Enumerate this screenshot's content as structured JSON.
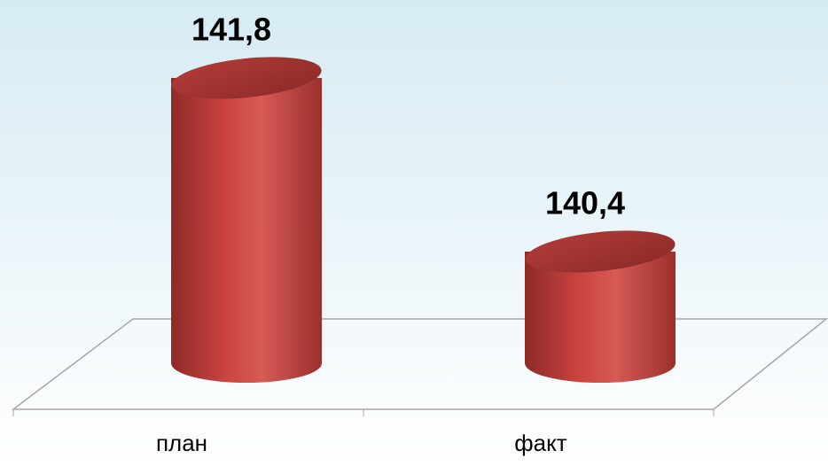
{
  "chart_data": {
    "type": "cylinder",
    "categories": [
      "план",
      "факт"
    ],
    "values": [
      141.8,
      140.4
    ],
    "value_labels": [
      "141,8",
      "140,4"
    ],
    "color": "#c0413d",
    "ylim": [
      139.5,
      142
    ]
  }
}
